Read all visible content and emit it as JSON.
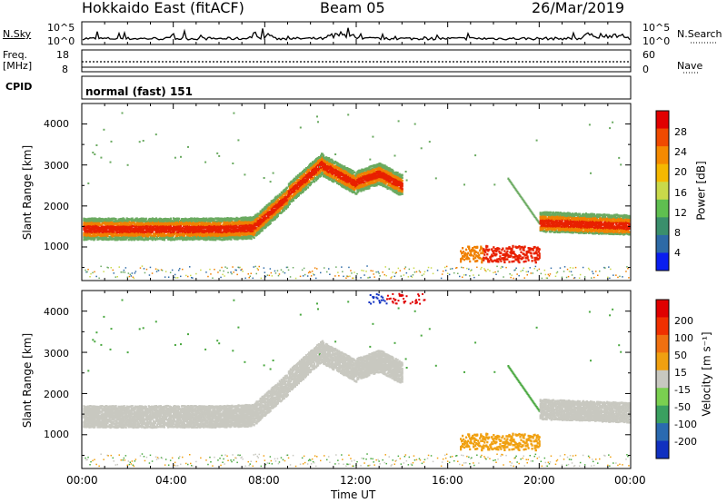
{
  "header": {
    "station": "Hokkaido East (fitACF)",
    "beam": "Beam 05",
    "date": "26/Mar/2019"
  },
  "noise_panel": {
    "left_label": "N.Sky",
    "right_label": "N.Search",
    "left_ticks": [
      "10^5",
      "10^0"
    ],
    "right_ticks": [
      "10^5",
      "10^0"
    ]
  },
  "freq_panel": {
    "left_label_1": "Freq.",
    "left_label_2": "[MHz]",
    "left_ticks": [
      "18",
      "8"
    ],
    "right_label": "Nave",
    "right_ticks": [
      "60",
      "0"
    ]
  },
  "cpid_panel": {
    "left_label": "CPID",
    "program": "normal (fast) 151"
  },
  "time_axis": {
    "title": "Time UT",
    "ticks": [
      "00:00",
      "04:00",
      "08:00",
      "12:00",
      "16:00",
      "20:00",
      "00:00"
    ]
  },
  "chart_data": [
    {
      "type": "heatmap",
      "name": "power",
      "ylabel": "Slant Range [km]",
      "yticks": [
        "4000",
        "3000",
        "2000",
        "1000"
      ],
      "ylim": [
        180,
        4500
      ],
      "x_hours": [
        0,
        24
      ],
      "colorbar_label": "Power [dB]",
      "colorbar_ticks": [
        "28",
        "24",
        "20",
        "16",
        "12",
        "8",
        "4"
      ],
      "colorbar_colors": [
        "#0a1ef0",
        "#2d6aa6",
        "#3a8f6c",
        "#5fbf50",
        "#c9d94a",
        "#f5b800",
        "#f58a00",
        "#f04a00",
        "#e10000"
      ],
      "colors": {
        "strong": "#e82000",
        "medium": "#f08000",
        "weak": "#6aaa60"
      }
    },
    {
      "type": "heatmap",
      "name": "velocity",
      "ylabel": "Slant Range [km]",
      "yticks": [
        "4000",
        "3000",
        "2000",
        "1000"
      ],
      "ylim": [
        180,
        4500
      ],
      "x_hours": [
        0,
        24
      ],
      "colorbar_label": "Velocity [m s⁻¹]",
      "colorbar_ticks": [
        "200",
        "100",
        "50",
        "15",
        "-15",
        "-50",
        "-100",
        "-200"
      ],
      "colorbar_colors": [
        "#1030c0",
        "#2a6ab0",
        "#3aa060",
        "#7ad050",
        "#c8c8c0",
        "#f0a010",
        "#f07010",
        "#f03000",
        "#e00000"
      ],
      "colors": {
        "ground": "#c8c8c0",
        "negative": "#f0a010",
        "positive": "#4aa840"
      }
    }
  ]
}
